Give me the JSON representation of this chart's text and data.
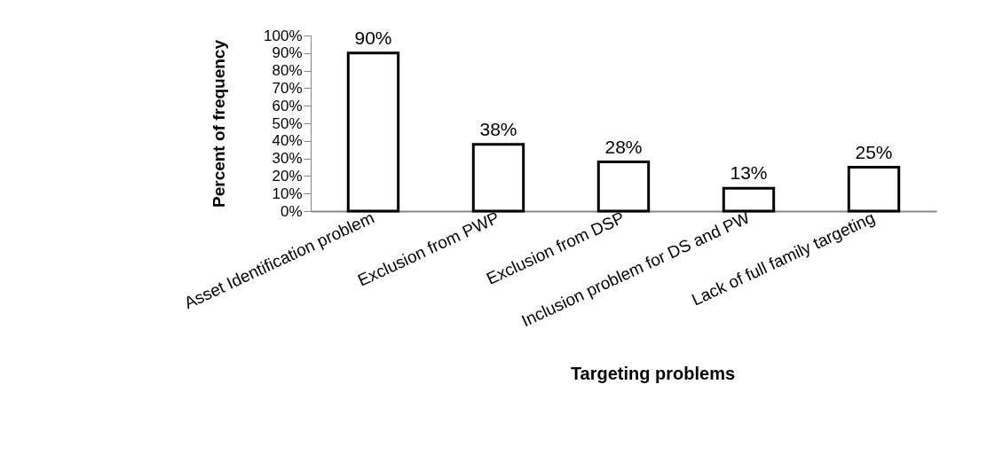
{
  "chart_data": {
    "type": "bar",
    "xlabel": "Targeting problems",
    "ylabel": "Percent of frequency",
    "categories": [
      "Asset Identification problem",
      "Exclusion from PWP",
      "Exclusion from DSP",
      "Inclusion problem for DS and PW",
      "Lack of full family targeting"
    ],
    "values": [
      90,
      38,
      28,
      13,
      25
    ],
    "value_labels": [
      "90%",
      "38%",
      "28%",
      "13%",
      "25%"
    ],
    "color": "#ffffff",
    "ylim": [
      0,
      100
    ],
    "yticks": [
      {
        "value": 0,
        "label": "0%"
      },
      {
        "value": 10,
        "label": "10%"
      },
      {
        "value": 20,
        "label": "20%"
      },
      {
        "value": 30,
        "label": "30%"
      },
      {
        "value": 40,
        "label": "40%"
      },
      {
        "value": 50,
        "label": "50%"
      },
      {
        "value": 60,
        "label": "60%"
      },
      {
        "value": 70,
        "label": "70%"
      },
      {
        "value": 80,
        "label": "80%"
      },
      {
        "value": 90,
        "label": "90%"
      },
      {
        "value": 100,
        "label": "100%"
      }
    ],
    "grid": false
  }
}
